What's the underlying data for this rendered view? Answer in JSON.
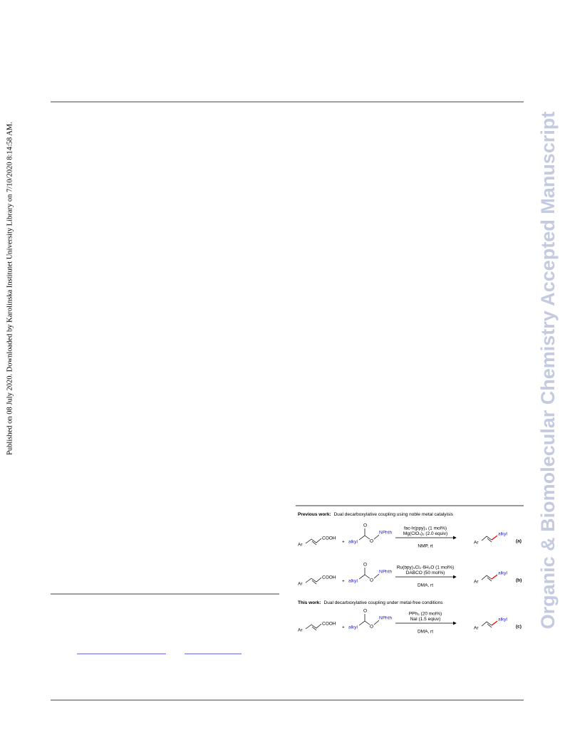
{
  "sidebar_left": "Published on 08 July 2020. Downloaded by Karolinska Institutet University Library on 7/10/2020 8:14:58 AM.",
  "watermark": "Organic & Biomolecular Chemistry Accepted Manuscript",
  "scheme": {
    "headings": [
      {
        "label": "Previous work:",
        "text": "Dual decarboxylative coupling using noble metal catalyisis"
      },
      {
        "label": "This work:",
        "text": "Dual decarboxylative coupling under metal-free conditions"
      }
    ],
    "reactions": [
      {
        "ar": "Ar",
        "acid": "COOH",
        "plus": "+",
        "alkyl": "alkyl",
        "carbonyl_o": "O",
        "ester_o": "O",
        "nphth": "NPhth",
        "above": [
          "fac-Ir(ppy)₃ (1 mol%)",
          "Mg(ClO₄)₂ (2.0 equiv)"
        ],
        "below": "NMP, rt",
        "product_ar": "Ar",
        "product_alkyl": "alkyl",
        "label": "(a)"
      },
      {
        "ar": "Ar",
        "acid": "COOH",
        "plus": "+",
        "alkyl": "alkyl",
        "carbonyl_o": "O",
        "ester_o": "O",
        "nphth": "NPhth",
        "above": [
          "Ru(bpy)₃Cl₂·6H₂O (1 mol%)",
          "DABCO (50 mol%)"
        ],
        "below": "DMA, rt",
        "product_ar": "Ar",
        "product_alkyl": "alkyl",
        "label": "(b)"
      },
      {
        "ar": "Ar",
        "acid": "COOH",
        "plus": "+",
        "alkyl": "alkyl",
        "carbonyl_o": "O",
        "ester_o": "O",
        "nphth": "NPhth",
        "above": [
          "PPh₃ (20 mol%)",
          "NaI (1.5 eqiuv)"
        ],
        "below": "DMA, rt",
        "product_ar": "Ar",
        "product_alkyl": "alkyl",
        "label": "(c)"
      }
    ]
  }
}
